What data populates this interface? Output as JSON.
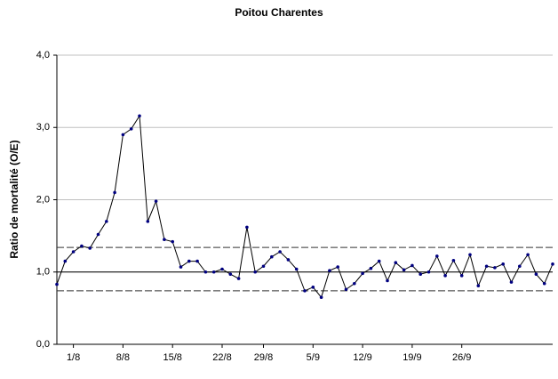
{
  "chart_data": {
    "type": "line",
    "title": "Poitou Charentes",
    "y_label": "Ratio de mortalité (O/E)",
    "categories": [
      null,
      null,
      "1/8",
      null,
      null,
      null,
      null,
      null,
      "8/8",
      null,
      null,
      null,
      null,
      null,
      "15/8",
      null,
      null,
      null,
      null,
      null,
      "22/8",
      null,
      null,
      null,
      null,
      "29/8",
      null,
      null,
      null,
      null,
      null,
      "5/9",
      null,
      null,
      null,
      null,
      null,
      "12/9",
      null,
      null,
      null,
      null,
      null,
      "19/9",
      null,
      null,
      null,
      null,
      null,
      "26/9",
      null,
      null,
      null,
      null,
      null,
      null,
      null,
      null,
      null,
      null,
      null
    ],
    "values": [
      0.83,
      1.15,
      1.28,
      1.36,
      1.33,
      1.52,
      1.7,
      2.1,
      2.9,
      2.98,
      3.16,
      1.7,
      1.98,
      1.45,
      1.42,
      1.07,
      1.15,
      1.15,
      1.0,
      1.0,
      1.04,
      0.97,
      0.91,
      1.62,
      1.0,
      1.08,
      1.21,
      1.28,
      1.17,
      1.04,
      0.74,
      0.79,
      0.65,
      1.02,
      1.07,
      0.76,
      0.84,
      0.98,
      1.05,
      1.15,
      0.88,
      1.13,
      1.03,
      1.09,
      0.97,
      1.0,
      1.22,
      0.95,
      1.16,
      0.95,
      1.24,
      0.81,
      1.08,
      1.06,
      1.11,
      0.86,
      1.08,
      1.24,
      0.97,
      0.84,
      1.11
    ],
    "color": "#000000",
    "marker_color": "#000080",
    "ylim": [
      0,
      4
    ],
    "yticks": [
      {
        "value": 0,
        "label": "0,0"
      },
      {
        "value": 1,
        "label": "1,0"
      },
      {
        "value": 2,
        "label": "2,0"
      },
      {
        "value": 3,
        "label": "3,0"
      },
      {
        "value": 4,
        "label": "4,0"
      }
    ],
    "grid": true,
    "reference_lines": [
      {
        "value": 1.0,
        "style": "solid"
      },
      {
        "value": 1.34,
        "style": "dashed"
      },
      {
        "value": 0.74,
        "style": "dashed"
      }
    ]
  }
}
